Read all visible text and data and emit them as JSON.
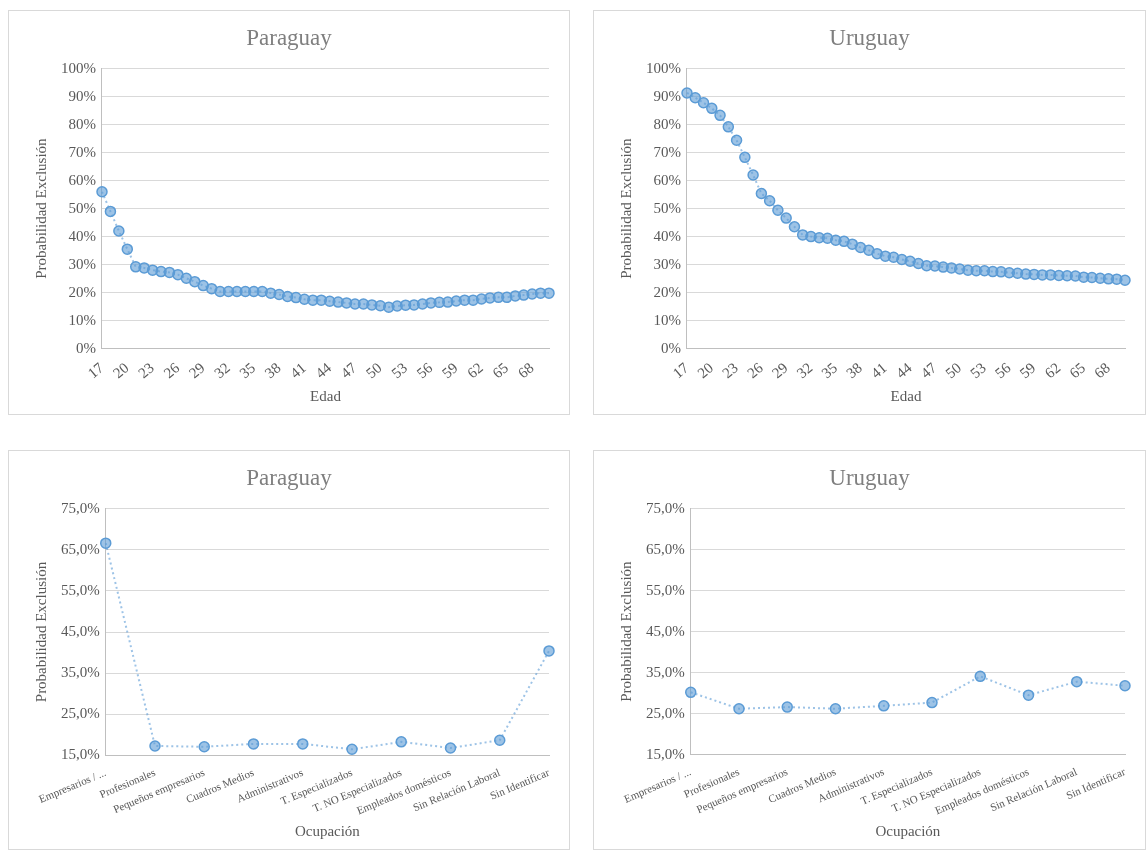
{
  "chart_data": [
    {
      "type": "line",
      "title": "Paraguay",
      "xlabel": "Edad",
      "ylabel": "Probabilidad Exclusión",
      "marker": "circle",
      "line_style": "dotted",
      "grid": "y",
      "legend": false,
      "categories": [
        "17",
        null,
        null,
        "20",
        null,
        null,
        "23",
        null,
        null,
        "26",
        null,
        null,
        "29",
        null,
        null,
        "32",
        null,
        null,
        "35",
        null,
        null,
        "38",
        null,
        null,
        "41",
        null,
        null,
        "44",
        null,
        null,
        "47",
        null,
        null,
        "50",
        null,
        null,
        "53",
        null,
        null,
        "56",
        null,
        null,
        "59",
        null,
        null,
        "62",
        null,
        null,
        "65",
        null,
        null,
        "68",
        null,
        null
      ],
      "series": [
        {
          "color": "#5b9bd5",
          "values": [
            56,
            49,
            42,
            35.5,
            29.2,
            28.8,
            28,
            27.5,
            27.2,
            26.4,
            25.1,
            23.9,
            22.5,
            21.4,
            20.4,
            20.4,
            20.4,
            20.4,
            20.4,
            20.4,
            19.8,
            19.3,
            18.6,
            18.2,
            17.6,
            17.3,
            17.3,
            16.9,
            16.6,
            16.3,
            15.9,
            15.9,
            15.6,
            15.3,
            14.8,
            15.2,
            15.5,
            15.6,
            15.9,
            16.3,
            16.5,
            16.6,
            17,
            17.3,
            17.3,
            17.7,
            18.1,
            18.3,
            18.3,
            18.8,
            19.1,
            19.5,
            19.8,
            19.8
          ]
        }
      ],
      "ylim": [
        0,
        100
      ],
      "yticks": [
        {
          "value": 0,
          "label": "0%"
        },
        {
          "value": 10,
          "label": "10%"
        },
        {
          "value": 20,
          "label": "20%"
        },
        {
          "value": 30,
          "label": "30%"
        },
        {
          "value": 40,
          "label": "40%"
        },
        {
          "value": 50,
          "label": "50%"
        },
        {
          "value": 60,
          "label": "60%"
        },
        {
          "value": 70,
          "label": "70%"
        },
        {
          "value": 80,
          "label": "80%"
        },
        {
          "value": 90,
          "label": "90%"
        },
        {
          "value": 100,
          "label": "100%"
        }
      ]
    },
    {
      "type": "line",
      "title": "Uruguay",
      "xlabel": "Edad",
      "ylabel": "Probabilidad Exclusión",
      "marker": "circle",
      "line_style": "dotted",
      "grid": "y",
      "legend": false,
      "categories": [
        "17",
        null,
        null,
        "20",
        null,
        null,
        "23",
        null,
        null,
        "26",
        null,
        null,
        "29",
        null,
        null,
        "32",
        null,
        null,
        "35",
        null,
        null,
        "38",
        null,
        null,
        "41",
        null,
        null,
        "44",
        null,
        null,
        "47",
        null,
        null,
        "50",
        null,
        null,
        "53",
        null,
        null,
        "56",
        null,
        null,
        "59",
        null,
        null,
        "62",
        null,
        null,
        "65",
        null,
        null,
        "68",
        null,
        null
      ],
      "series": [
        {
          "color": "#5b9bd5",
          "values": [
            91.3,
            89.6,
            87.8,
            85.8,
            83.3,
            79.2,
            74.4,
            68.3,
            62,
            55.4,
            52.8,
            49.4,
            46.6,
            43.5,
            40.6,
            40,
            39.6,
            39.4,
            38.7,
            38.3,
            37.3,
            36.1,
            35.1,
            33.9,
            33,
            32.6,
            31.8,
            31.2,
            30.4,
            29.6,
            29.5,
            29.1,
            28.8,
            28.4,
            28,
            27.8,
            27.8,
            27.5,
            27.4,
            27.1,
            26.9,
            26.6,
            26.5,
            26.3,
            26.3,
            26.1,
            26,
            25.9,
            25.5,
            25.4,
            25.1,
            24.9,
            24.8,
            24.4
          ]
        }
      ],
      "ylim": [
        0,
        100
      ],
      "yticks": [
        {
          "value": 0,
          "label": "0%"
        },
        {
          "value": 10,
          "label": "10%"
        },
        {
          "value": 20,
          "label": "20%"
        },
        {
          "value": 30,
          "label": "30%"
        },
        {
          "value": 40,
          "label": "40%"
        },
        {
          "value": 50,
          "label": "50%"
        },
        {
          "value": 60,
          "label": "60%"
        },
        {
          "value": 70,
          "label": "70%"
        },
        {
          "value": 80,
          "label": "80%"
        },
        {
          "value": 90,
          "label": "90%"
        },
        {
          "value": 100,
          "label": "100%"
        }
      ]
    },
    {
      "type": "line",
      "title": "Paraguay",
      "xlabel": "Ocupación",
      "ylabel": "Probabilidad Exclusión",
      "marker": "circle",
      "line_style": "dotted",
      "grid": "y",
      "legend": false,
      "categories": [
        "Empresarios / ...",
        "Profesionales",
        "Pequeños empresarios",
        "Cuadros Medios",
        "Administrativos",
        "T. Especializados",
        "T. NO Especializados",
        "Empleados domésticos",
        "Sin Relación Laboral",
        "Sin Identificar"
      ],
      "series": [
        {
          "color": "#5b9bd5",
          "values": [
            66.6,
            17.3,
            17.1,
            17.8,
            17.8,
            16.5,
            18.3,
            16.8,
            18.7,
            40.4
          ]
        }
      ],
      "ylim": [
        15,
        75
      ],
      "yticks": [
        {
          "value": 15,
          "label": "15,0%"
        },
        {
          "value": 25,
          "label": "25,0%"
        },
        {
          "value": 35,
          "label": "35,0%"
        },
        {
          "value": 45,
          "label": "45,0%"
        },
        {
          "value": 55,
          "label": "55,0%"
        },
        {
          "value": 65,
          "label": "65,0%"
        },
        {
          "value": 75,
          "label": "75,0%"
        }
      ]
    },
    {
      "type": "line",
      "title": "Uruguay",
      "xlabel": "Ocupación",
      "ylabel": "Probabilidad Exclusión",
      "marker": "circle",
      "line_style": "dotted",
      "grid": "y",
      "legend": false,
      "categories": [
        "Empresarios / ...",
        "Profesionales",
        "Pequeños empresarios",
        "Cuadros Medios",
        "Administrativos",
        "T. Especializados",
        "T. NO Especializados",
        "Empleados domésticos",
        "Sin Relación Laboral",
        "Sin Identificar"
      ],
      "series": [
        {
          "color": "#5b9bd5",
          "values": [
            30.2,
            26.2,
            26.6,
            26.2,
            26.9,
            27.7,
            34.1,
            29.5,
            32.8,
            31.8
          ]
        }
      ],
      "ylim": [
        15,
        75
      ],
      "yticks": [
        {
          "value": 15,
          "label": "15,0%"
        },
        {
          "value": 25,
          "label": "25,0%"
        },
        {
          "value": 35,
          "label": "35,0%"
        },
        {
          "value": 45,
          "label": "45,0%"
        },
        {
          "value": 55,
          "label": "55,0%"
        },
        {
          "value": 65,
          "label": "65,0%"
        },
        {
          "value": 75,
          "label": "75,0%"
        }
      ]
    }
  ]
}
